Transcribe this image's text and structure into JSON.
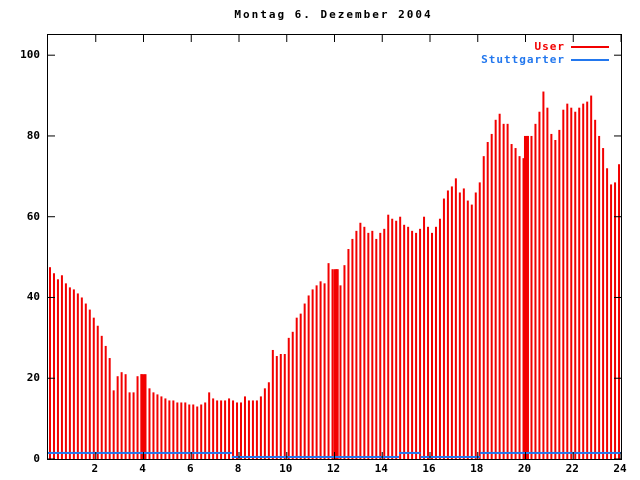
{
  "title": "Montag 6. Dezember 2004",
  "legend": {
    "entries": [
      {
        "label": "User",
        "color": "#f20000"
      },
      {
        "label": "Stuttgarter",
        "color": "#2277ee"
      }
    ]
  },
  "chart_data": {
    "type": "bar",
    "title": "Montag 6. Dezember 2004",
    "xlabel": "",
    "ylabel": "",
    "x_unit": "hour_of_day",
    "xlim": [
      0,
      24
    ],
    "ylim": [
      0,
      105
    ],
    "x_ticks": [
      2,
      4,
      6,
      8,
      10,
      12,
      14,
      16,
      18,
      20,
      22,
      24
    ],
    "y_ticks": [
      0,
      20,
      40,
      60,
      80,
      100
    ],
    "grid": false,
    "legend_position": "top-right-inside",
    "series": [
      {
        "name": "User",
        "color": "#f20000",
        "style": "impulses",
        "interval_minutes": 10,
        "start_hour": 0,
        "values": [
          47.5,
          46,
          44.5,
          45.5,
          43.5,
          42.5,
          42,
          41,
          40,
          38.5,
          37,
          35,
          33,
          30.5,
          28,
          25,
          17,
          20.5,
          21.5,
          21,
          16.5,
          16.5,
          20.5,
          21,
          21,
          17.5,
          16.5,
          16,
          15.5,
          15,
          14.5,
          14.5,
          14,
          14,
          14,
          13.5,
          13.5,
          13,
          13.5,
          14,
          16.5,
          15,
          14.5,
          14.5,
          14.5,
          15,
          14.5,
          14,
          14,
          15.5,
          14.5,
          14.5,
          14.5,
          15.5,
          17.5,
          19,
          27,
          25.5,
          26,
          26,
          30,
          31.5,
          35,
          36,
          38.5,
          40.5,
          42,
          43,
          44,
          43.5,
          48.5,
          47,
          47,
          43,
          48,
          52,
          54.5,
          56.5,
          58.5,
          57.5,
          56,
          56.5,
          54.5,
          56,
          57,
          60.5,
          59.5,
          59,
          60,
          58,
          57.5,
          56.5,
          56,
          57,
          60,
          57.5,
          56,
          57.5,
          59.5,
          64.5,
          66.5,
          67.5,
          69.5,
          66,
          67,
          64,
          63,
          66,
          68.5,
          75,
          78.5,
          80.5,
          84,
          85.5,
          83,
          83,
          78,
          77,
          75,
          74.5,
          80,
          80,
          83,
          86,
          91,
          87,
          80.5,
          79,
          81.5,
          86.5,
          88,
          87,
          86,
          87,
          88,
          88.5,
          90,
          84,
          80,
          77,
          72,
          68,
          68.5,
          73
        ]
      },
      {
        "name": "Stuttgarter",
        "color": "#2277ee",
        "style": "steps",
        "segments": [
          {
            "from_hour": 0,
            "to_hour": 7.7,
            "value": 1.5
          },
          {
            "from_hour": 7.7,
            "to_hour": 14.7,
            "value": 0.5
          },
          {
            "from_hour": 14.7,
            "to_hour": 15.6,
            "value": 1.5
          },
          {
            "from_hour": 15.6,
            "to_hour": 18.1,
            "value": 0.5
          },
          {
            "from_hour": 18.1,
            "to_hour": 24,
            "value": 1.5
          }
        ]
      }
    ],
    "solid_spikes": [
      {
        "hour": 3.95,
        "value": 21,
        "note": "solid red block to 21"
      },
      {
        "hour": 12.05,
        "value": 47,
        "note": "solid red line to 47"
      },
      {
        "hour": 20.02,
        "value": 80,
        "note": "solid red line to 80"
      }
    ]
  }
}
